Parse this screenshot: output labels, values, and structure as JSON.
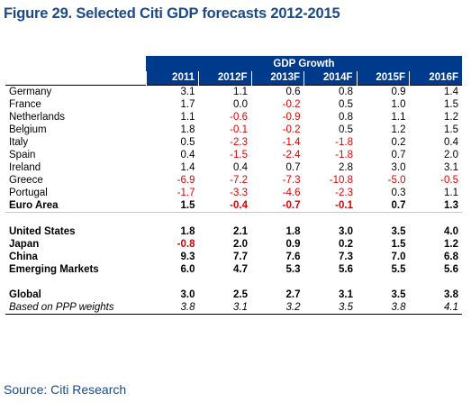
{
  "title": "Figure 29. Selected Citi GDP forecasts 2012-2015",
  "table": {
    "group_header": "GDP Growth",
    "columns": [
      "2011",
      "2012F",
      "2013F",
      "2014F",
      "2015F",
      "2016F"
    ],
    "sections": [
      {
        "rows": [
          {
            "label": "Germany",
            "values": [
              "3.1",
              "1.1",
              "0.6",
              "0.8",
              "0.9",
              "1.4"
            ]
          },
          {
            "label": "France",
            "values": [
              "1.7",
              "0.0",
              "-0.2",
              "0.5",
              "1.0",
              "1.5"
            ]
          },
          {
            "label": "Netherlands",
            "values": [
              "1.1",
              "-0.6",
              "-0.9",
              "0.8",
              "1.1",
              "1.2"
            ]
          },
          {
            "label": "Belgium",
            "values": [
              "1.8",
              "-0.1",
              "-0.2",
              "0.5",
              "1.2",
              "1.5"
            ]
          },
          {
            "label": "Italy",
            "values": [
              "0.5",
              "-2.3",
              "-1.4",
              "-1.8",
              "0.2",
              "0.4"
            ]
          },
          {
            "label": "Spain",
            "values": [
              "0.4",
              "-1.5",
              "-2.4",
              "-1.8",
              "0.7",
              "2.0"
            ]
          },
          {
            "label": "Ireland",
            "values": [
              "1.4",
              "0.4",
              "0.7",
              "2.8",
              "3.0",
              "3.1"
            ]
          },
          {
            "label": "Greece",
            "values": [
              "-6.9",
              "-7.2",
              "-7.3",
              "-10.8",
              "-5.0",
              "-0.5"
            ]
          },
          {
            "label": "Portugal",
            "values": [
              "-1.7",
              "-3.3",
              "-4.6",
              "-2.3",
              "0.3",
              "1.1"
            ]
          },
          {
            "label": "Euro Area",
            "values": [
              "1.5",
              "-0.4",
              "-0.7",
              "-0.1",
              "0.7",
              "1.3"
            ],
            "bold": true
          }
        ]
      },
      {
        "rows": [
          {
            "label": "United States",
            "values": [
              "1.8",
              "2.1",
              "1.8",
              "3.0",
              "3.5",
              "4.0"
            ],
            "bold": true
          },
          {
            "label": "Japan",
            "values": [
              "-0.8",
              "2.0",
              "0.9",
              "0.2",
              "1.5",
              "1.2"
            ],
            "bold": true
          },
          {
            "label": "China",
            "values": [
              "9.3",
              "7.7",
              "7.6",
              "7.3",
              "7.0",
              "6.8"
            ],
            "bold": true
          },
          {
            "label": "Emerging Markets",
            "values": [
              "6.0",
              "4.7",
              "5.3",
              "5.6",
              "5.5",
              "5.6"
            ],
            "bold": true
          }
        ]
      },
      {
        "rows": [
          {
            "label": "Global",
            "values": [
              "3.0",
              "2.5",
              "2.7",
              "3.1",
              "3.5",
              "3.8"
            ],
            "bold": true
          },
          {
            "label": "Based on PPP weights",
            "values": [
              "3.8",
              "3.1",
              "3.2",
              "3.5",
              "3.8",
              "4.1"
            ],
            "italic": true
          }
        ]
      }
    ]
  },
  "source": "Source: Citi Research",
  "colors": {
    "header_bg": "#003a8c",
    "title": "#1a4a8a",
    "negative": "#e00000"
  }
}
